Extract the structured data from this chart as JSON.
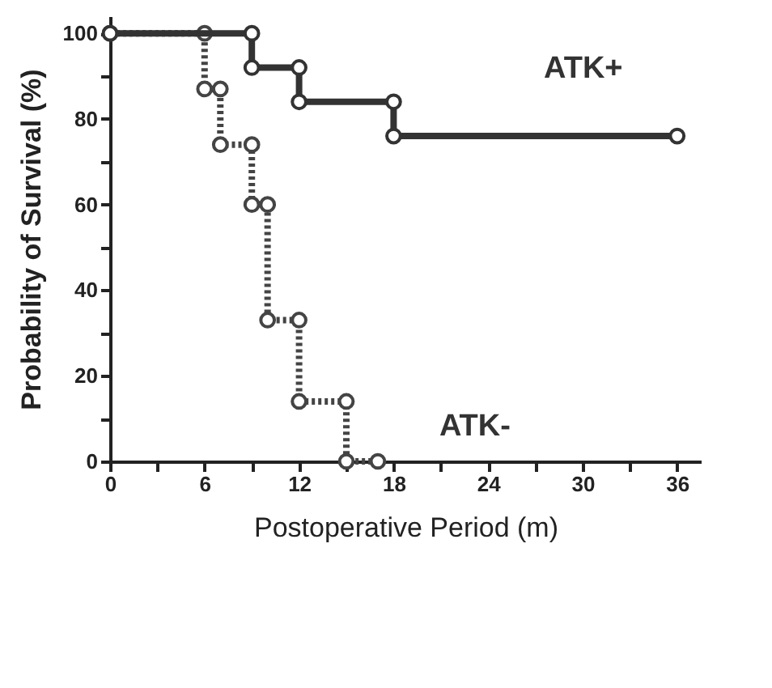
{
  "chart_data": {
    "type": "line",
    "xlabel": "Postoperative Period (m)",
    "ylabel": "Probability of Survival (%)",
    "xlim": [
      0,
      37.5
    ],
    "ylim": [
      0,
      104
    ],
    "xticks": [
      0,
      {
        "value": 3,
        "label": null
      },
      6,
      {
        "value": 9,
        "label": null
      },
      12,
      {
        "value": 15,
        "label": null
      },
      18,
      {
        "value": 21,
        "label": null
      },
      24,
      {
        "value": 27,
        "label": null
      },
      30,
      {
        "value": 33,
        "label": null
      },
      36
    ],
    "yticks": [
      0,
      {
        "value": 10,
        "label": null
      },
      20,
      {
        "value": 30,
        "label": null
      },
      40,
      {
        "value": 50,
        "label": null
      },
      60,
      {
        "value": 70,
        "label": null
      },
      80,
      {
        "value": 90,
        "label": null
      },
      100
    ],
    "marker": "circle",
    "grid": false,
    "legend": false,
    "series": [
      {
        "name": "ATK+",
        "color": "#333333",
        "line_style": "solid",
        "x": [
          0,
          9,
          9,
          12,
          12,
          18,
          18,
          36
        ],
        "values": [
          100,
          100,
          92,
          92,
          84,
          84,
          76,
          76
        ]
      },
      {
        "name": "ATK-",
        "color": "#444444",
        "line_style": "dotted",
        "x": [
          0,
          6,
          6,
          7,
          7,
          9,
          9,
          10,
          10,
          12,
          12,
          15,
          15,
          17
        ],
        "values": [
          100,
          100,
          87,
          87,
          74,
          74,
          60,
          60,
          33,
          33,
          14,
          14,
          0,
          0
        ]
      }
    ]
  }
}
